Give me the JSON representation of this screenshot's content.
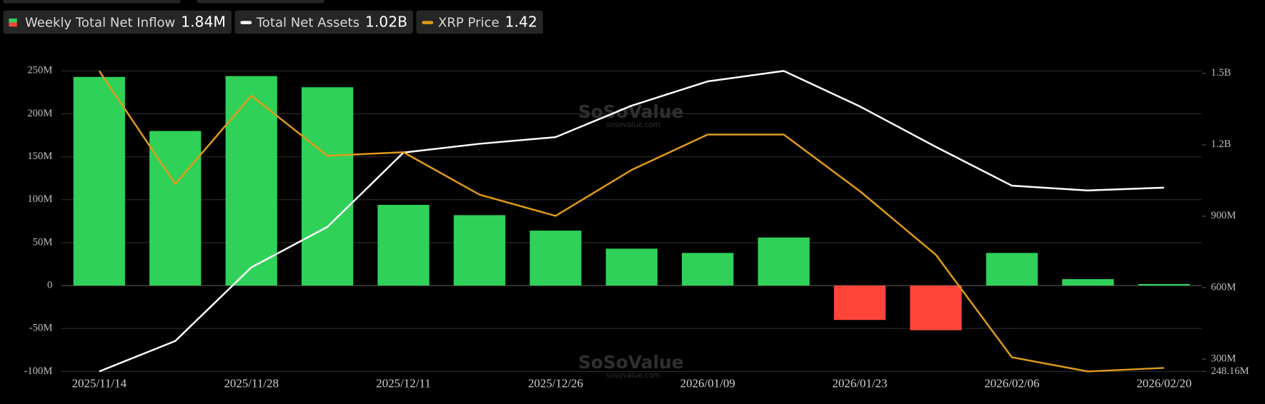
{
  "chart_data": {
    "type": "bar",
    "watermark": "SoSoValue",
    "watermark_url": "sosovalue.com",
    "categories": [
      "2025/11/14",
      null,
      "2025/11/28",
      null,
      "2025/12/11",
      null,
      "2025/12/26",
      null,
      "2026/01/09",
      null,
      "2026/01/23",
      null,
      "2026/02/06",
      null,
      "2026/02/20"
    ],
    "ylim": [
      -100000000,
      250000000
    ],
    "yticks": [
      {
        "value": -100000000,
        "label": "-100M"
      },
      {
        "value": -50000000,
        "label": "-50M"
      },
      0,
      {
        "value": 50000000,
        "label": "50M"
      },
      {
        "value": 100000000,
        "label": "100M"
      },
      {
        "value": 150000000,
        "label": "150M"
      },
      {
        "value": 200000000,
        "label": "200M"
      },
      {
        "value": 250000000,
        "label": "250M"
      }
    ],
    "y2lim": [
      248160000,
      1510000000
    ],
    "y2ticks": [
      {
        "value": 248160000,
        "label": "248.16M"
      },
      {
        "value": 300000000,
        "label": "300M"
      },
      {
        "value": 600000000,
        "label": "600M"
      },
      {
        "value": 900000000,
        "label": "900M"
      },
      {
        "value": 1200000000,
        "label": "1.2B"
      },
      {
        "value": 1500000000,
        "label": "1.5B"
      }
    ],
    "y3lim": [
      1.41,
      2.26
    ],
    "grid": true,
    "series": [
      {
        "name": "Weekly Total Net Inflow",
        "latest_label": "1.84M",
        "type": "bar",
        "color": "#30d158",
        "negative_color": "#ff453a",
        "values": [
          243000000,
          180000000,
          244000000,
          231000000,
          94000000,
          82000000,
          64000000,
          43000000,
          38000000,
          56000000,
          -40000000,
          -52000000,
          38000000,
          7500000,
          1840000
        ]
      },
      {
        "name": "Total Net Assets",
        "latest_label": "1.02B",
        "type": "line",
        "axis": "y2",
        "color": "#ffffff",
        "values": [
          248160000,
          376000000,
          685000000,
          855000000,
          1167000000,
          1204000000,
          1232000000,
          1364000000,
          1466000000,
          1510000000,
          1361000000,
          1191000000,
          1028000000,
          1008000000,
          1020000000
        ]
      },
      {
        "name": "XRP Price",
        "latest_label": "1.42",
        "type": "line",
        "axis": "y3",
        "color": "#e09a1a",
        "values": [
          2.26,
          1.94,
          2.19,
          2.02,
          2.03,
          1.91,
          1.85,
          1.98,
          2.08,
          2.08,
          1.92,
          1.74,
          1.45,
          1.41,
          1.42
        ]
      }
    ]
  }
}
